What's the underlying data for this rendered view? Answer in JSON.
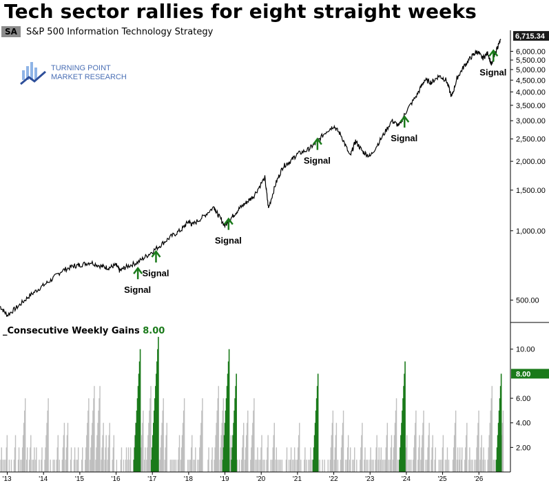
{
  "title": "Tech sector rallies for eight straight weeks",
  "symbol": {
    "badge": "SA",
    "name": "S&P 500 Information Technology  Strategy"
  },
  "logo": {
    "line1": "TURNING POINT",
    "line2": "MARKET RESEARCH"
  },
  "colors": {
    "price_line": "#000000",
    "signal": "#1a7a1a",
    "gain_bar_normal": "#bfbfbf",
    "gain_bar_highlight": "#1a7a1a"
  },
  "chart_data": [
    {
      "type": "line",
      "title": "S&P 500 Information Technology",
      "scale": "log",
      "ylim": [
        400,
        7400
      ],
      "y_ticks": [
        "500.00",
        "1,000.00",
        "1,500.00",
        "2,000.00",
        "2,500.00",
        "3,000.00",
        "3,500.00",
        "4,000.00",
        "4,500.00",
        "5,000.00",
        "5,500.00",
        "6,000.00"
      ],
      "last_value_label": "6,715.34",
      "x_range": [
        2012.8,
        2026.85
      ],
      "series": [
        {
          "points": [
            [
              2012.8,
              470
            ],
            [
              2013.0,
              430
            ],
            [
              2013.3,
              470
            ],
            [
              2013.6,
              520
            ],
            [
              2013.9,
              565
            ],
            [
              2014.2,
              610
            ],
            [
              2014.5,
              670
            ],
            [
              2014.8,
              700
            ],
            [
              2015.0,
              710
            ],
            [
              2015.3,
              730
            ],
            [
              2015.6,
              700
            ],
            [
              2015.8,
              690
            ],
            [
              2016.0,
              710
            ],
            [
              2016.1,
              670
            ],
            [
              2016.3,
              700
            ],
            [
              2016.6,
              730
            ],
            [
              2016.9,
              790
            ],
            [
              2017.2,
              860
            ],
            [
              2017.5,
              940
            ],
            [
              2017.8,
              1010
            ],
            [
              2018.0,
              1100
            ],
            [
              2018.1,
              1060
            ],
            [
              2018.4,
              1150
            ],
            [
              2018.7,
              1270
            ],
            [
              2018.8,
              1180
            ],
            [
              2019.0,
              1050
            ],
            [
              2019.2,
              1150
            ],
            [
              2019.4,
              1250
            ],
            [
              2019.6,
              1330
            ],
            [
              2019.8,
              1420
            ],
            [
              2020.1,
              1700
            ],
            [
              2020.2,
              1250
            ],
            [
              2020.4,
              1600
            ],
            [
              2020.6,
              1900
            ],
            [
              2020.8,
              2000
            ],
            [
              2021.0,
              2150
            ],
            [
              2021.3,
              2250
            ],
            [
              2021.5,
              2400
            ],
            [
              2021.8,
              2700
            ],
            [
              2022.0,
              2850
            ],
            [
              2022.2,
              2600
            ],
            [
              2022.45,
              2100
            ],
            [
              2022.6,
              2450
            ],
            [
              2022.8,
              2200
            ],
            [
              2023.0,
              2100
            ],
            [
              2023.3,
              2500
            ],
            [
              2023.6,
              3000
            ],
            [
              2023.8,
              2850
            ],
            [
              2024.0,
              3300
            ],
            [
              2024.3,
              3900
            ],
            [
              2024.5,
              4500
            ],
            [
              2024.7,
              4400
            ],
            [
              2024.9,
              4700
            ],
            [
              2025.1,
              4500
            ],
            [
              2025.25,
              3800
            ],
            [
              2025.4,
              4600
            ],
            [
              2025.6,
              5200
            ],
            [
              2025.8,
              5700
            ],
            [
              2025.95,
              6000
            ],
            [
              2026.1,
              5600
            ],
            [
              2026.25,
              5900
            ],
            [
              2026.35,
              5200
            ],
            [
              2026.5,
              6200
            ],
            [
              2026.6,
              6715.34
            ]
          ]
        }
      ],
      "signals": [
        {
          "x": 2016.6,
          "y": 660,
          "label": "Signal",
          "label_pos": "below"
        },
        {
          "x": 2017.1,
          "y": 780,
          "label": "Signal",
          "label_pos": "below"
        },
        {
          "x": 2019.1,
          "y": 1080,
          "label": "Signal",
          "label_pos": "below"
        },
        {
          "x": 2021.55,
          "y": 2400,
          "label": "Signal",
          "label_pos": "below"
        },
        {
          "x": 2023.95,
          "y": 3000,
          "label": "Signal",
          "label_pos": "below"
        },
        {
          "x": 2026.4,
          "y": 5800,
          "label": "Signal",
          "label_pos": "below"
        }
      ]
    },
    {
      "type": "bar",
      "title": "Consecutive Weekly Gains",
      "current_value": "8.00",
      "ylim": [
        0,
        11.5
      ],
      "y_ticks": [
        "2.00",
        "4.00",
        "6.00",
        "8.00",
        "10.00"
      ],
      "x_ticks": [
        "'13",
        "'14",
        "'15",
        "'16",
        "'17",
        "'18",
        "'19",
        "'20",
        "'21",
        "'22",
        "'23",
        "'24",
        "'25",
        "'26"
      ],
      "highlight_bars": [
        {
          "x": 2016.65,
          "value": 10
        },
        {
          "x": 2017.15,
          "value": 11
        },
        {
          "x": 2019.1,
          "value": 10
        },
        {
          "x": 2019.3,
          "value": 8
        },
        {
          "x": 2021.55,
          "value": 8
        },
        {
          "x": 2023.95,
          "value": 9
        },
        {
          "x": 2026.6,
          "value": 8
        }
      ]
    }
  ]
}
